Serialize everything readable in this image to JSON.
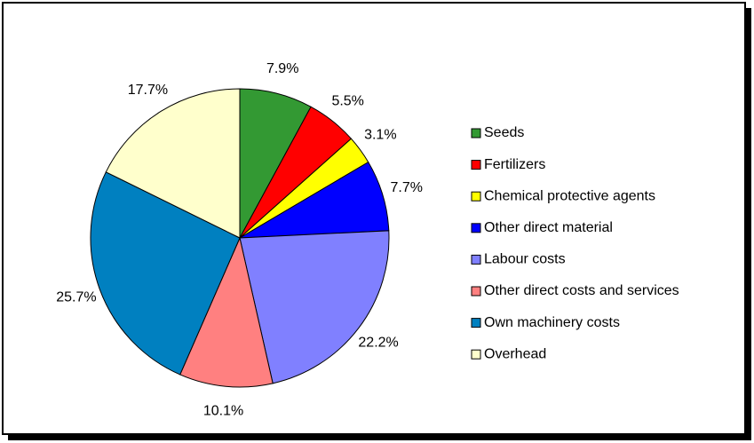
{
  "chart_data": {
    "type": "pie",
    "categories": [
      "Seeds",
      "Fertilizers",
      "Chemical protective agents",
      "Other direct material",
      "Labour costs",
      "Other direct costs and services",
      "Own machinery costs",
      "Overhead"
    ],
    "values": [
      7.9,
      5.5,
      3.1,
      7.7,
      22.2,
      10.1,
      25.7,
      17.7
    ],
    "value_labels": [
      "7.9%",
      "5.5%",
      "3.1%",
      "7.7%",
      "22.2%",
      "10.1%",
      "25.7%",
      "17.7%"
    ],
    "colors": [
      "#339933",
      "#ff0000",
      "#ffff00",
      "#0000ff",
      "#8080ff",
      "#ff8080",
      "#0080c0",
      "#ffffcc"
    ],
    "legend": "right"
  }
}
